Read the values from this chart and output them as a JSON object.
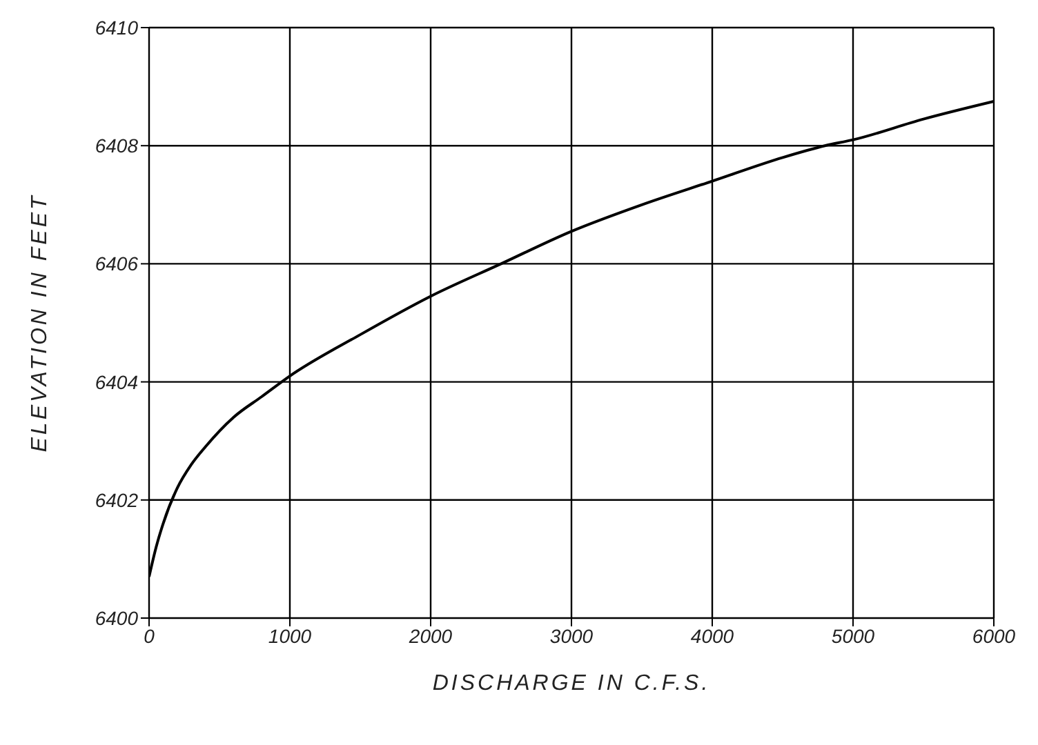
{
  "chart_data": {
    "type": "line",
    "xlabel": "DISCHARGE IN C.F.S.",
    "ylabel": "ELEVATION IN FEET",
    "x": [
      0,
      50,
      100,
      200,
      300,
      400,
      600,
      800,
      1000,
      1500,
      2000,
      2500,
      3000,
      3500,
      4000,
      4500,
      4800,
      5000,
      5500,
      6000
    ],
    "series": [
      {
        "color": "#000000",
        "values": [
          6400.7,
          6401.2,
          6401.6,
          6402.2,
          6402.6,
          6402.9,
          6403.4,
          6403.75,
          6404.1,
          6404.8,
          6405.45,
          6406.0,
          6406.55,
          6407.0,
          6407.4,
          6407.8,
          6408.0,
          6408.1,
          6408.45,
          6408.75
        ]
      }
    ],
    "xlim": [
      0,
      6000
    ],
    "xticks": [
      0,
      1000,
      2000,
      3000,
      4000,
      5000,
      6000
    ],
    "ylim": [
      6400,
      6410
    ],
    "yticks": [
      6400,
      6402,
      6404,
      6406,
      6408,
      6410
    ],
    "grid": true,
    "marker": "none",
    "line_style": "solid"
  }
}
